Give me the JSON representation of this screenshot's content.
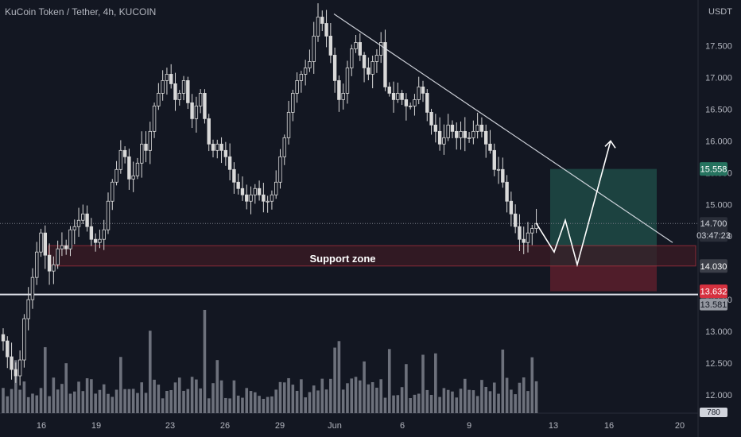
{
  "header": {
    "symbol_line": "KuCoin Token / Tether, 4h, KUCOIN"
  },
  "annotations": {
    "support_label": "Support zone"
  },
  "price_tags": {
    "target": "15.558",
    "current_price": "14.700",
    "countdown": "03:47:23",
    "entry": "14.030",
    "stop": "13.632",
    "horizontal_line": "13.581",
    "volume_partial": "780"
  },
  "colors": {
    "background": "#131722",
    "candle": "#d9d9d9",
    "target_zone": "#1f4a45",
    "stop_zone": "#5c1f2c",
    "support_zone": "#3b1a24",
    "support_border": "#b2323f",
    "target_tag": "#26735f",
    "stop_tag": "#d6313f",
    "entry_tag": "#3b3e48",
    "price_tag": "#2a2e39"
  },
  "chart_data": {
    "type": "candlestick",
    "title": "KuCoin Token / Tether, 4h, KUCOIN",
    "ylabel": "USDT",
    "ylim": [
      11.8,
      18.2
    ],
    "y_ticks": [
      "17.500",
      "17.000",
      "16.500",
      "16.000",
      "15.500",
      "15.000",
      "14.500",
      "13.500",
      "13.000",
      "12.500",
      "12.000"
    ],
    "x_ticks": [
      "16",
      "19",
      "23",
      "26",
      "29",
      "Jun",
      "6",
      "9",
      "13",
      "16",
      "20"
    ],
    "close_series": [
      12.85,
      12.6,
      12.4,
      12.3,
      12.55,
      13.2,
      13.5,
      13.85,
      14.25,
      14.55,
      14.2,
      13.95,
      14.05,
      14.3,
      14.35,
      14.3,
      14.6,
      14.65,
      14.75,
      14.85,
      14.65,
      14.45,
      14.4,
      14.45,
      14.6,
      15.05,
      15.35,
      15.55,
      15.85,
      15.75,
      15.4,
      15.45,
      15.65,
      15.95,
      15.85,
      16.15,
      16.55,
      16.75,
      16.95,
      17.05,
      16.9,
      16.65,
      16.75,
      16.95,
      16.6,
      16.35,
      16.55,
      16.75,
      16.35,
      15.95,
      15.85,
      15.95,
      15.85,
      15.75,
      15.55,
      15.35,
      15.25,
      15.15,
      15.05,
      15.15,
      15.25,
      15.15,
      15.05,
      15.05,
      15.15,
      15.35,
      15.75,
      16.05,
      16.45,
      16.75,
      16.95,
      17.05,
      17.15,
      17.25,
      17.65,
      17.95,
      17.85,
      17.65,
      17.35,
      16.95,
      16.65,
      16.75,
      17.15,
      17.45,
      17.55,
      17.35,
      17.15,
      17.05,
      17.25,
      17.35,
      17.55,
      16.85,
      16.75,
      16.65,
      16.75,
      16.65,
      16.55,
      16.55,
      16.65,
      16.85,
      16.75,
      16.45,
      16.25,
      16.15,
      15.95,
      16.05,
      16.25,
      16.15,
      16.05,
      16.15,
      16.05,
      16.05,
      16.15,
      16.25,
      16.15,
      15.95,
      15.85,
      15.55,
      15.55,
      15.35,
      15.05,
      14.85,
      14.65,
      14.45,
      14.4,
      14.55,
      14.62,
      14.7
    ],
    "projected_path": [
      14.7,
      14.25,
      14.75,
      14.05,
      16.0
    ],
    "target_zone": [
      14.03,
      15.558
    ],
    "stop_zone": [
      13.632,
      14.03
    ],
    "support_zone": [
      14.03,
      14.35
    ],
    "horizontal_line": 13.581,
    "trendline": {
      "start": 18.0,
      "end": 14.4
    },
    "current_price": 14.7,
    "annotations": [
      "Support zone"
    ]
  }
}
